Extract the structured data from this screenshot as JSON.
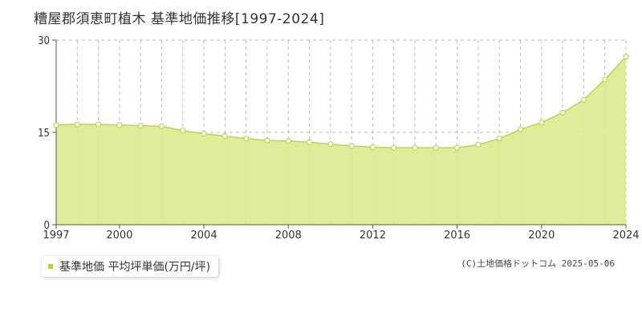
{
  "title": "糟屋郡須恵町植木 基準地価推移[1997-2024]",
  "legend_label": "基準地価 平均坪単価(万円/坪)",
  "copyright": "(C)土地価格ドットコム 2025-05-06",
  "colors": {
    "fill": "#dcec94",
    "line": "#bcd64a",
    "marker_fill": "#ffffff",
    "grid": "#bbbbbb",
    "axis": "#555555"
  },
  "chart_data": {
    "type": "area",
    "x": [
      1997,
      1998,
      1999,
      2000,
      2001,
      2002,
      2003,
      2004,
      2005,
      2006,
      2007,
      2008,
      2009,
      2010,
      2011,
      2012,
      2013,
      2014,
      2015,
      2016,
      2017,
      2018,
      2019,
      2020,
      2021,
      2022,
      2023,
      2024
    ],
    "series": [
      {
        "name": "基準地価 平均坪単価(万円/坪)",
        "values": [
          16.2,
          16.3,
          16.3,
          16.2,
          16.1,
          16.0,
          15.3,
          14.8,
          14.4,
          14.0,
          13.7,
          13.6,
          13.4,
          13.1,
          12.8,
          12.6,
          12.5,
          12.5,
          12.5,
          12.5,
          13.0,
          14.0,
          15.5,
          16.6,
          18.2,
          20.3,
          23.6,
          27.3
        ]
      }
    ],
    "x_ticks": [
      1997,
      2000,
      2004,
      2008,
      2012,
      2016,
      2020,
      2024
    ],
    "y_ticks": [
      0,
      15,
      30
    ],
    "xlim": [
      1997,
      2024
    ],
    "ylim": [
      0,
      30
    ],
    "xlabel": "",
    "ylabel": "",
    "grid": true,
    "legend_position": "bottom-left"
  }
}
